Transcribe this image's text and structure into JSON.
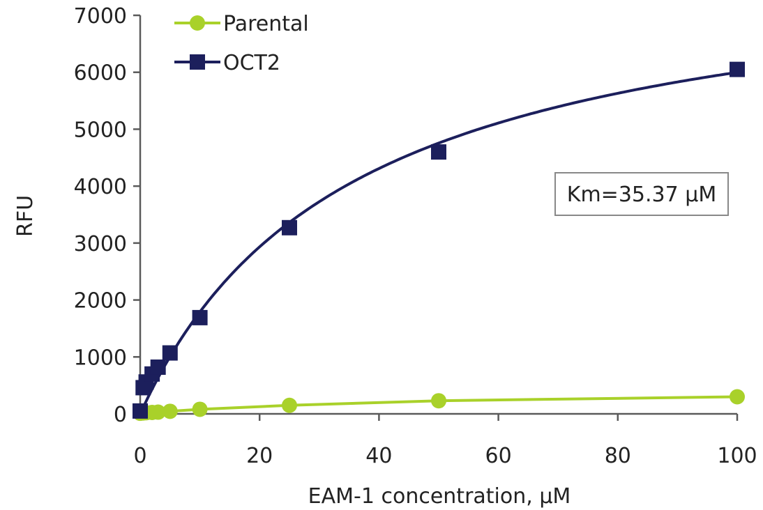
{
  "chart_data": {
    "type": "line",
    "xlabel": "EAM-1 concentration, µM",
    "ylabel": "RFU",
    "xlim": [
      0,
      100
    ],
    "ylim": [
      0,
      7000
    ],
    "x_ticks": [
      0,
      20,
      40,
      60,
      80,
      100
    ],
    "y_ticks": [
      0,
      1000,
      2000,
      3000,
      4000,
      5000,
      6000,
      7000
    ],
    "grid": false,
    "legend_position": "top-left",
    "annotation": "Km=35.37 µM",
    "series": [
      {
        "name": "Parental",
        "color": "#a9d12a",
        "marker": "circle",
        "x": [
          0,
          0.5,
          1,
          2,
          3,
          5,
          10,
          25,
          50,
          100
        ],
        "y": [
          10,
          15,
          20,
          25,
          30,
          45,
          80,
          150,
          230,
          300
        ]
      },
      {
        "name": "OCT2",
        "color": "#1c1f5c",
        "marker": "square",
        "x": [
          0,
          0.5,
          1,
          2,
          3,
          5,
          10,
          25,
          50,
          100
        ],
        "y": [
          50,
          460,
          560,
          700,
          820,
          1070,
          1690,
          3270,
          4600,
          6050
        ],
        "fit": "michaelis-menten",
        "fit_km": 35.37,
        "fit_vmax": 8120
      }
    ]
  }
}
